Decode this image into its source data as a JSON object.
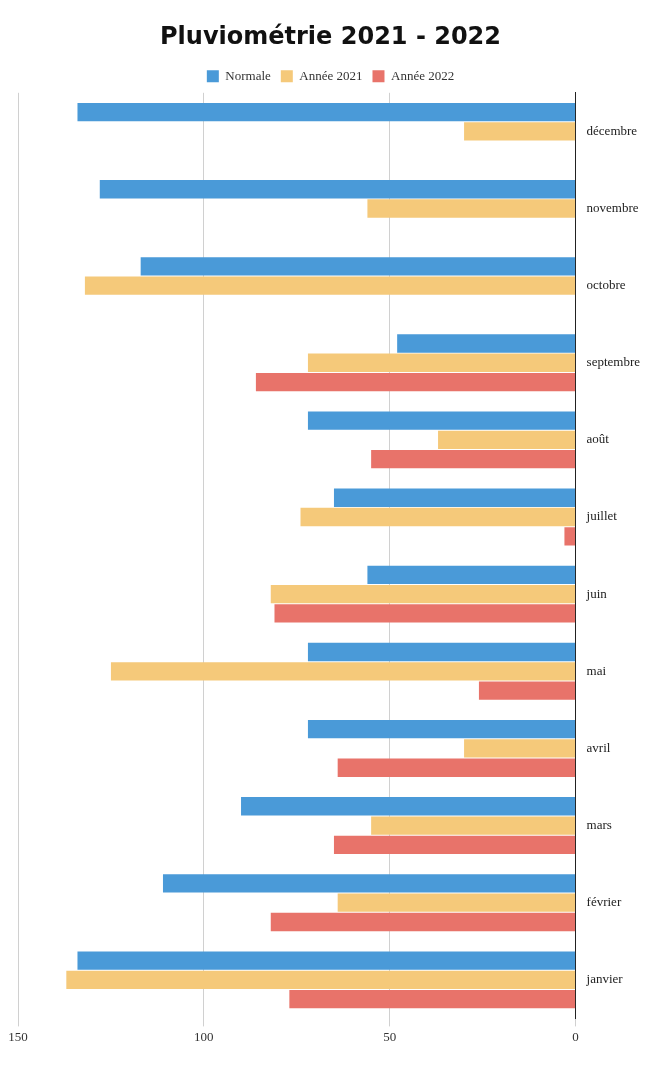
{
  "chart_data": {
    "type": "bar",
    "orientation": "horizontal",
    "title": "Pluviométrie 2021 - 2022",
    "categories": [
      "décembre",
      "novembre",
      "octobre",
      "septembre",
      "août",
      "juillet",
      "juin",
      "mai",
      "avril",
      "mars",
      "février",
      "janvier"
    ],
    "series": [
      {
        "name": "Normale",
        "color": "#4a9ad8",
        "values": [
          134,
          128,
          117,
          48,
          72,
          65,
          56,
          72,
          72,
          90,
          111,
          134
        ]
      },
      {
        "name": "Année 2021",
        "color": "#f5c97a",
        "values": [
          30,
          56,
          132,
          72,
          37,
          74,
          82,
          125,
          30,
          55,
          64,
          137
        ]
      },
      {
        "name": "Année 2022",
        "color": "#e8736a",
        "values": [
          null,
          null,
          null,
          86,
          55,
          3,
          81,
          26,
          64,
          65,
          82,
          77
        ]
      }
    ],
    "xlim": [
      150,
      0
    ],
    "xticks": [
      0,
      50,
      100,
      150
    ],
    "grid": "x",
    "legend": "top"
  }
}
